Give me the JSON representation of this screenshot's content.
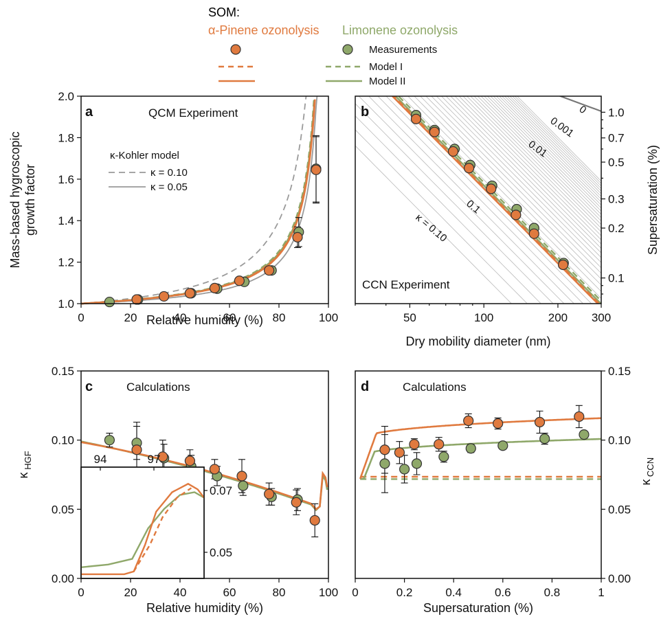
{
  "colors": {
    "pinene": "#e07a3f",
    "limonene": "#8fa86a",
    "kohler": "#9a9a9a",
    "kappa_lines": "#b9b9b9"
  },
  "legend": {
    "heading": "SOM:",
    "pinene_label": "α-Pinene ozonolysis",
    "limonene_label": "Limonene ozonolysis",
    "measurements": "Measurements",
    "model1": "Model I",
    "model2": "Model II"
  },
  "panels": {
    "a": {
      "letter": "a",
      "title": "QCM Experiment",
      "xlabel": "Relative humidity (%)",
      "ylabel_line1": "Mass-based hygroscopic",
      "ylabel_line2": "growth factor",
      "kohler_title": "κ-Kohler model",
      "k1": "κ = 0.10",
      "k2": "κ = 0.05"
    },
    "b": {
      "letter": "b",
      "title": "CCN Experiment",
      "xlabel": "Dry mobility diameter (nm)",
      "ylabel": "Supersaturation (%)",
      "kappa_labels": [
        "0",
        "0.001",
        "0.01",
        "0.1",
        "κ = 0.10"
      ]
    },
    "c": {
      "letter": "c",
      "title": "Calculations",
      "xlabel": "Relative humidity (%)",
      "ylabel": "κHGF",
      "ylabel_main": "κ",
      "ylabel_sub": "HGF"
    },
    "d": {
      "letter": "d",
      "title": "Calculations",
      "xlabel": "Supersaturation (%)",
      "ylabel": "κCCN",
      "ylabel_main": "κ",
      "ylabel_sub": "CCN"
    }
  },
  "chart_data": [
    {
      "panel": "a",
      "type": "scatter",
      "xlabel": "Relative humidity (%)",
      "ylabel": "Mass-based hygroscopic growth factor",
      "xlim": [
        0,
        100
      ],
      "ylim": [
        1.0,
        2.0
      ],
      "xticks": [
        0,
        20,
        40,
        60,
        80,
        100
      ],
      "yticks": [
        1.0,
        1.2,
        1.4,
        1.6,
        1.8,
        2.0
      ],
      "series": [
        {
          "name": "α-Pinene ozonolysis Measurements",
          "x": [
            22.5,
            33.5,
            44,
            54,
            64,
            76,
            87.5,
            95
          ],
          "y": [
            1.02,
            1.035,
            1.05,
            1.075,
            1.11,
            1.16,
            1.32,
            1.645
          ],
          "err": [
            0,
            0,
            0,
            0,
            0,
            0,
            0.05,
            0.16
          ]
        },
        {
          "name": "Limonene ozonolysis Measurements",
          "x": [
            11.5,
            23,
            44.5,
            55,
            66,
            77,
            88,
            95
          ],
          "y": [
            1.008,
            1.02,
            1.05,
            1.072,
            1.105,
            1.16,
            1.345,
            1.65
          ],
          "err": [
            0,
            0,
            0,
            0,
            0,
            0,
            0.07,
            0.16
          ]
        }
      ]
    },
    {
      "panel": "b",
      "type": "scatter",
      "xlabel": "Dry mobility diameter (nm)",
      "ylabel": "Supersaturation (%)",
      "xscale": "log",
      "yscale": "log",
      "xticks": [
        50,
        100,
        200,
        300
      ],
      "yticks": [
        0.1,
        0.2,
        0.3,
        0.5,
        0.7,
        1.0
      ],
      "series": [
        {
          "name": "α-Pinene ozonolysis Measurements",
          "x": [
            53,
            63,
            75,
            87,
            107,
            135,
            160,
            210
          ],
          "y": [
            0.91,
            0.76,
            0.58,
            0.46,
            0.345,
            0.24,
            0.185,
            0.12
          ]
        },
        {
          "name": "Limonene ozonolysis Measurements",
          "x": [
            53,
            63,
            76,
            88,
            108,
            136,
            160,
            211
          ],
          "y": [
            0.96,
            0.78,
            0.6,
            0.48,
            0.36,
            0.26,
            0.2,
            0.123
          ]
        }
      ]
    },
    {
      "panel": "c",
      "type": "scatter",
      "xlabel": "Relative humidity (%)",
      "ylabel": "κHGF",
      "xlim": [
        0,
        100
      ],
      "ylim": [
        0,
        0.15
      ],
      "xticks": [
        0,
        20,
        40,
        60,
        80,
        100
      ],
      "yticks": [
        0.0,
        0.05,
        0.1,
        0.15
      ],
      "inset": {
        "xticks": [
          94,
          97
        ],
        "yticks": [
          0.05,
          0.07
        ]
      },
      "series": [
        {
          "name": "α-Pinene ozonolysis Measurements",
          "x": [
            22.5,
            33,
            44,
            54,
            65,
            76,
            87,
            94.5
          ],
          "y": [
            0.093,
            0.088,
            0.085,
            0.079,
            0.074,
            0.061,
            0.055,
            0.042
          ],
          "err": [
            0.02,
            0.012,
            0.008,
            0.007,
            0.012,
            0.008,
            0.009,
            0.012
          ]
        },
        {
          "name": "Limonene ozonolysis Measurements",
          "x": [
            11.5,
            22.5,
            33.5,
            44.5,
            55,
            65.5,
            77,
            87.5
          ],
          "y": [
            0.1,
            0.098,
            0.087,
            0.081,
            0.074,
            0.067,
            0.059,
            0.057
          ],
          "err": [
            0.005,
            0.012,
            0.01,
            0.008,
            0.007,
            0.007,
            0.006,
            0.008
          ]
        }
      ]
    },
    {
      "panel": "d",
      "type": "scatter",
      "xlabel": "Supersaturation (%)",
      "ylabel": "κCCN",
      "xlim": [
        0,
        1
      ],
      "ylim": [
        0,
        0.15
      ],
      "xticks": [
        0,
        0.2,
        0.4,
        0.6,
        0.8,
        1
      ],
      "yticks": [
        0.0,
        0.05,
        0.1,
        0.15
      ],
      "series": [
        {
          "name": "α-Pinene ozonolysis Measurements",
          "x": [
            0.12,
            0.18,
            0.24,
            0.34,
            0.46,
            0.58,
            0.75,
            0.91
          ],
          "y": [
            0.093,
            0.091,
            0.097,
            0.097,
            0.114,
            0.112,
            0.113,
            0.117
          ],
          "err": [
            0.017,
            0.008,
            0.004,
            0.005,
            0.005,
            0.004,
            0.008,
            0.008
          ]
        },
        {
          "name": "Limonene ozonolysis Measurements",
          "x": [
            0.12,
            0.2,
            0.25,
            0.36,
            0.47,
            0.6,
            0.77,
            0.93
          ],
          "y": [
            0.083,
            0.079,
            0.083,
            0.088,
            0.094,
            0.096,
            0.101,
            0.104
          ],
          "err": [
            0.021,
            0.01,
            0.008,
            0.004,
            0.003,
            0.002,
            0.004,
            0.002
          ]
        }
      ]
    }
  ]
}
